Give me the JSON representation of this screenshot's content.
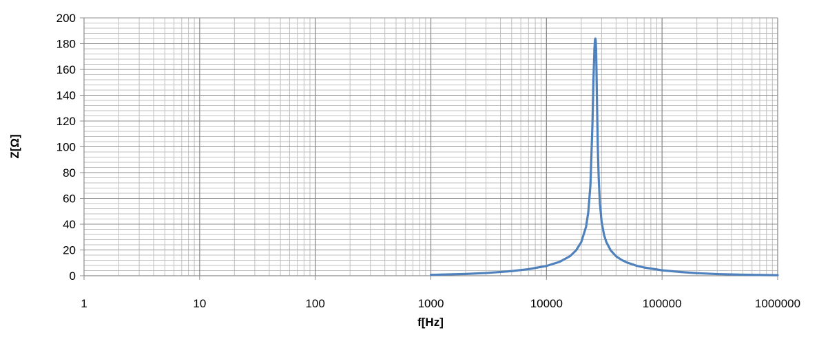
{
  "chart_data": {
    "type": "line",
    "title": "",
    "xlabel": "f[Hz]",
    "ylabel": "Z[Ω]",
    "x_scale": "log",
    "xlim": [
      1,
      1000000
    ],
    "ylim": [
      0,
      200
    ],
    "x_ticks": [
      "1",
      "10",
      "100",
      "1000",
      "10000",
      "100000",
      "1000000"
    ],
    "y_ticks": [
      "0",
      "20",
      "40",
      "60",
      "80",
      "100",
      "120",
      "140",
      "160",
      "180",
      "200"
    ],
    "grid": true,
    "legend": "none",
    "colors": {
      "line": "#4f81bd",
      "grid": "#bfbfbf",
      "grid_major": "#8c8c8c",
      "axis": "#8c8c8c"
    },
    "series": [
      {
        "x": [
          1000,
          2000,
          3000,
          5000,
          7000,
          10000,
          13000,
          16000,
          18000,
          20000,
          22000,
          23000,
          24000,
          25000,
          25500,
          26000,
          26300,
          26500,
          26700,
          26900,
          27100,
          27400,
          27800,
          28300,
          29000,
          30000,
          31500,
          33000,
          36000,
          40000,
          45000,
          50000,
          60000,
          70000,
          100000,
          150000,
          200000,
          300000,
          500000,
          700000,
          1000000
        ],
        "y": [
          0.7,
          1.4,
          2.1,
          3.6,
          5.1,
          7.6,
          10.8,
          15.2,
          19.6,
          26.1,
          37.9,
          49.2,
          70.1,
          118,
          152,
          176,
          183,
          184,
          182,
          174,
          158,
          131,
          100,
          76,
          56,
          41.8,
          31.6,
          26,
          19.6,
          15.1,
          12.1,
          10.2,
          7.8,
          6.4,
          4.2,
          2.8,
          2.0,
          1.3,
          0.8,
          0.6,
          0.4
        ]
      }
    ]
  }
}
